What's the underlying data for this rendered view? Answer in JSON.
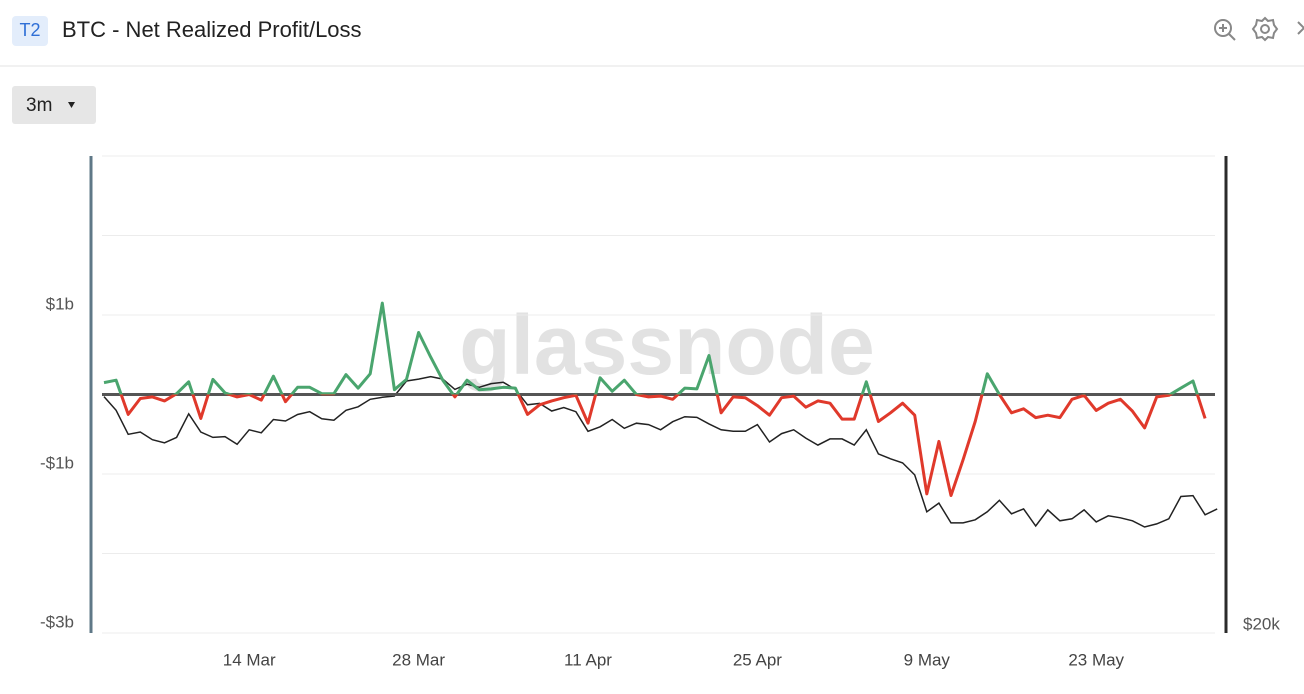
{
  "header": {
    "badge": "T2",
    "timeframe": "3m"
  },
  "chart_data": {
    "type": "line",
    "title": "BTC - Net Realized Profit/Loss",
    "watermark": "glassnode",
    "categories": [
      null,
      null,
      null,
      null,
      null,
      null,
      null,
      null,
      null,
      null,
      null,
      null,
      "14 Mar",
      null,
      null,
      null,
      null,
      null,
      null,
      null,
      null,
      null,
      null,
      null,
      null,
      null,
      "28 Mar",
      null,
      null,
      null,
      null,
      null,
      null,
      null,
      null,
      null,
      null,
      null,
      null,
      null,
      "11 Apr",
      null,
      null,
      null,
      null,
      null,
      null,
      null,
      null,
      null,
      null,
      null,
      null,
      null,
      "25 Apr",
      null,
      null,
      null,
      null,
      null,
      null,
      null,
      null,
      null,
      null,
      null,
      null,
      null,
      "9 May",
      null,
      null,
      null,
      null,
      null,
      null,
      null,
      null,
      null,
      null,
      null,
      null,
      null,
      "23 May",
      null,
      null,
      null,
      null,
      null,
      null,
      null,
      null,
      null,
      null
    ],
    "series": [
      {
        "positive_color": "#4aa56e",
        "negative_color": "#e0392b",
        "values": [
          0.15,
          0.18,
          -0.25,
          -0.05,
          -0.03,
          -0.08,
          0.01,
          0.16,
          -0.3,
          0.19,
          0.02,
          -0.03,
          0,
          -0.07,
          0.23,
          -0.09,
          0.09,
          0.09,
          0.01,
          0.01,
          0.25,
          0.08,
          0.26,
          1.15,
          0.06,
          0.19,
          0.78,
          0.47,
          0.18,
          -0.03,
          0.18,
          0.06,
          0.07,
          0.09,
          0.08,
          -0.25,
          -0.13,
          -0.08,
          -0.04,
          -0.01,
          -0.36,
          0.21,
          0.04,
          0.18,
          0,
          -0.03,
          -0.02,
          -0.06,
          0.08,
          0.07,
          0.49,
          -0.23,
          -0.03,
          -0.04,
          -0.14,
          -0.26,
          -0.04,
          -0.02,
          -0.16,
          -0.08,
          -0.11,
          -0.31,
          -0.31,
          0.16,
          -0.34,
          -0.23,
          -0.11,
          -0.26,
          -1.25,
          -0.59,
          -1.27,
          -0.82,
          -0.34,
          0.26,
          0,
          -0.23,
          -0.18,
          -0.29,
          -0.26,
          -0.29,
          -0.06,
          -0.01,
          -0.2,
          -0.11,
          -0.06,
          -0.21,
          -0.42,
          -0.03,
          -0.01,
          0.08,
          0.17,
          -0.3,
          null
        ]
      },
      {
        "axis": "y2",
        "color": "#222222",
        "values": [
          44400,
          42400,
          39100,
          39400,
          38400,
          38000,
          38700,
          41900,
          39400,
          38700,
          38800,
          37800,
          39700,
          39300,
          41100,
          40900,
          41800,
          42200,
          41200,
          41000,
          42400,
          42900,
          44000,
          44300,
          44500,
          46800,
          47100,
          47500,
          47100,
          45500,
          46300,
          45800,
          46400,
          46600,
          45500,
          43200,
          43400,
          42300,
          42800,
          42200,
          39500,
          40100,
          41100,
          39900,
          40600,
          40400,
          39700,
          40800,
          41500,
          41400,
          40500,
          39700,
          39500,
          39500,
          40400,
          38100,
          39200,
          39700,
          38600,
          37700,
          38500,
          38500,
          37700,
          39700,
          36600,
          36000,
          35500,
          34100,
          30100,
          31000,
          29000,
          29000,
          29300,
          30100,
          31300,
          29900,
          30400,
          28700,
          30300,
          29200,
          29400,
          30300,
          29100,
          29700,
          29500,
          29200,
          28600,
          28900,
          29400,
          31700,
          31800,
          29800,
          30400
        ]
      }
    ],
    "ylim": [
      -3,
      3
    ],
    "yticks": [
      {
        "value": 1,
        "label": "$1b"
      },
      {
        "value": -1,
        "label": "-$1b"
      },
      {
        "value": -3,
        "label": "-$3b"
      }
    ],
    "minor_yticks": [
      3,
      2,
      0,
      -2
    ],
    "zero_line": true,
    "y2lim": [
      20000,
      100000
    ],
    "y2_log": true,
    "y2ticks": [
      {
        "value": 20000,
        "label": "$20k"
      }
    ],
    "grid": true
  }
}
